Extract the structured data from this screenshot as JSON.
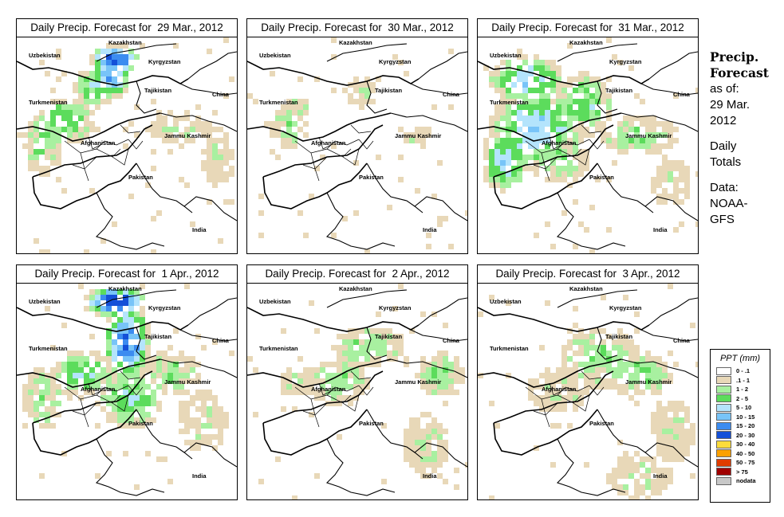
{
  "panels": [
    {
      "title": "Daily Precip. Forecast for  29 Mar., 2012"
    },
    {
      "title": "Daily Precip. Forecast for  30 Mar., 2012"
    },
    {
      "title": "Daily Precip. Forecast for  31 Mar., 2012"
    },
    {
      "title": "Daily Precip. Forecast for  1 Apr., 2012"
    },
    {
      "title": "Daily Precip. Forecast for  2 Apr., 2012"
    },
    {
      "title": "Daily Precip. Forecast for  3 Apr., 2012"
    }
  ],
  "map_labels": {
    "kazakhstan": "Kazakhstan",
    "uzbekistan": "Uzbekistan",
    "kyrgyzstan": "Kyrgyzstan",
    "tajikistan": "Tajikistan",
    "china": "China",
    "turkmenistan": "Turkmenistan",
    "afghanistan": "Afghanistan",
    "jammu_kashmir": "Jammu Kashmir",
    "pakistan": "Pakistan",
    "india": "India"
  },
  "sidebar": {
    "heading_line1": "Precip.",
    "heading_line2": "Forecast",
    "asof_line1": "as of:",
    "asof_line2": "29 Mar.",
    "asof_line3": "2012",
    "totals_line1": "Daily",
    "totals_line2": "Totals",
    "source_line1": "Data:",
    "source_line2": "NOAA-",
    "source_line3": "GFS"
  },
  "legend": {
    "title": "PPT (mm)",
    "items": [
      {
        "label": "0 - .1",
        "color": "#ffffff"
      },
      {
        "label": ".1 - 1",
        "color": "#e8d8b8"
      },
      {
        "label": "1 - 2",
        "color": "#a8f0a0"
      },
      {
        "label": "2 - 5",
        "color": "#5cdc5c"
      },
      {
        "label": "5 - 10",
        "color": "#b4e4fc"
      },
      {
        "label": "10 - 15",
        "color": "#78c4f8"
      },
      {
        "label": "15 - 20",
        "color": "#3c8cf0"
      },
      {
        "label": "20 - 30",
        "color": "#1450d8"
      },
      {
        "label": "30 - 40",
        "color": "#fcdc3c"
      },
      {
        "label": "40 - 50",
        "color": "#fca000"
      },
      {
        "label": "50 - 75",
        "color": "#e03c00"
      },
      {
        "label": "> 75",
        "color": "#a00000"
      },
      {
        "label": "nodata",
        "color": "#c8c8c8"
      }
    ]
  }
}
